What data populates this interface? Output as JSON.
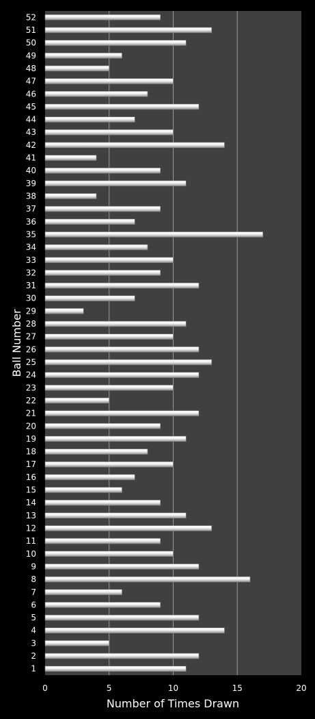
{
  "chart_data": {
    "type": "bar",
    "orientation": "horizontal",
    "title": "",
    "xlabel": "Number of Times Drawn",
    "ylabel": "Ball Number",
    "xlim": [
      0,
      20
    ],
    "xticks": [
      0,
      5,
      10,
      15,
      20
    ],
    "grid": true,
    "legend": "none",
    "colors": {
      "background": "#000000",
      "plot_area": "#404040",
      "bar_fill": "#e8e8e8",
      "gridline": "#9a9a9a",
      "text": "#ffffff"
    },
    "categories": [
      "1",
      "2",
      "3",
      "4",
      "5",
      "6",
      "7",
      "8",
      "9",
      "10",
      "11",
      "12",
      "13",
      "14",
      "15",
      "16",
      "17",
      "18",
      "19",
      "20",
      "21",
      "22",
      "23",
      "24",
      "25",
      "26",
      "27",
      "28",
      "29",
      "30",
      "31",
      "32",
      "33",
      "34",
      "35",
      "36",
      "37",
      "38",
      "39",
      "40",
      "41",
      "42",
      "43",
      "44",
      "45",
      "46",
      "47",
      "48",
      "49",
      "50",
      "51",
      "52"
    ],
    "values": [
      11,
      12,
      5,
      14,
      12,
      9,
      6,
      16,
      12,
      10,
      9,
      13,
      11,
      9,
      6,
      7,
      10,
      8,
      11,
      9,
      12,
      5,
      10,
      12,
      13,
      12,
      10,
      11,
      3,
      7,
      12,
      9,
      10,
      8,
      17,
      7,
      9,
      4,
      11,
      9,
      4,
      14,
      10,
      7,
      12,
      8,
      10,
      5,
      6,
      11,
      13,
      9
    ]
  }
}
